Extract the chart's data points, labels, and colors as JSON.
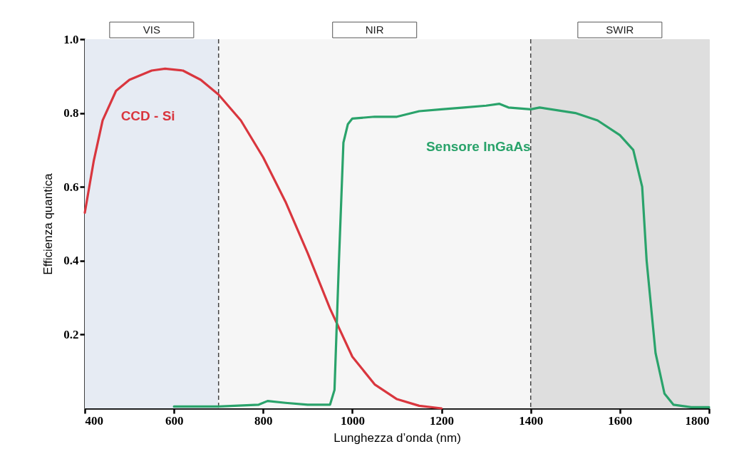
{
  "chart_data": {
    "type": "line",
    "xlabel": "Lunghezza d’onda (nm)",
    "ylabel": "Efficienza quantica",
    "xlim": [
      400,
      1800
    ],
    "xticks": [
      400,
      600,
      800,
      1000,
      1200,
      1400,
      1600,
      1800
    ],
    "ylim": [
      0,
      1.0
    ],
    "yticks": [
      0.2,
      0.4,
      0.6,
      0.8,
      {
        "value": 1.0,
        "label": "1.0"
      }
    ],
    "grid": false,
    "line_style": "solid",
    "marker": "none",
    "series": [
      {
        "name": "CCD - Si",
        "color": "#d9363e",
        "x": [
          400,
          410,
          420,
          440,
          470,
          500,
          550,
          580,
          620,
          660,
          700,
          750,
          800,
          850,
          900,
          950,
          1000,
          1050,
          1100,
          1150,
          1200
        ],
        "values": [
          0.53,
          0.6,
          0.67,
          0.78,
          0.86,
          0.89,
          0.915,
          0.92,
          0.915,
          0.89,
          0.85,
          0.78,
          0.68,
          0.56,
          0.42,
          0.27,
          0.14,
          0.065,
          0.025,
          0.007,
          0.0
        ]
      },
      {
        "name": "Sensore InGaAs",
        "color": "#2aa36b",
        "x": [
          600,
          700,
          790,
          810,
          850,
          900,
          950,
          960,
          970,
          980,
          990,
          1000,
          1050,
          1100,
          1150,
          1200,
          1250,
          1300,
          1330,
          1350,
          1400,
          1420,
          1500,
          1550,
          1600,
          1630,
          1650,
          1660,
          1680,
          1700,
          1720,
          1760,
          1800
        ],
        "values": [
          0.005,
          0.005,
          0.01,
          0.02,
          0.015,
          0.01,
          0.01,
          0.05,
          0.4,
          0.72,
          0.77,
          0.785,
          0.79,
          0.79,
          0.805,
          0.81,
          0.815,
          0.82,
          0.825,
          0.815,
          0.81,
          0.815,
          0.8,
          0.78,
          0.74,
          0.7,
          0.6,
          0.4,
          0.15,
          0.04,
          0.01,
          0.003,
          0.003
        ]
      }
    ],
    "bands": [
      {
        "axis": "x",
        "from": 400,
        "to": 700,
        "label": "VIS",
        "color": "#e6ebf3"
      },
      {
        "axis": "x",
        "from": 700,
        "to": 1400,
        "label": "NIR",
        "color": "#f6f6f6"
      },
      {
        "axis": "x",
        "from": 1400,
        "to": 1800,
        "label": "SWIR",
        "color": "#dedede"
      }
    ],
    "ref_lines": [
      {
        "axis": "x",
        "value": 700,
        "color": "#444444",
        "line_style": "dashed"
      },
      {
        "axis": "x",
        "value": 1400,
        "color": "#444444",
        "line_style": "dashed"
      }
    ]
  }
}
